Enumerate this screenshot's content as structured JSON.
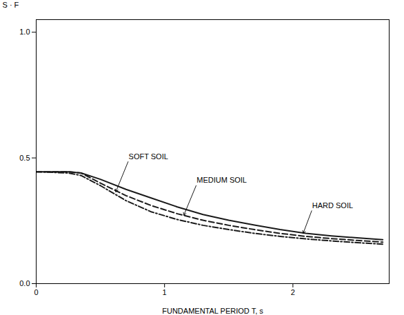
{
  "chart_data": {
    "type": "line",
    "xlabel": "FUNDAMENTAL PERIOD T, s",
    "ylabel": "S · F",
    "x": [
      0.0,
      0.25,
      0.35,
      0.5,
      0.7,
      0.9,
      1.1,
      1.3,
      1.5,
      1.7,
      1.9,
      2.1,
      2.3,
      2.5,
      2.7
    ],
    "xlim": [
      0,
      2.75
    ],
    "ylim": [
      0,
      1.05
    ],
    "xticks": [
      0,
      1,
      2
    ],
    "yticks": [
      {
        "value": 0,
        "label": "0.0"
      },
      0.5,
      {
        "value": 1.0,
        "label": "1.0"
      }
    ],
    "grid": false,
    "series": [
      {
        "color": "#1a1a1a",
        "line_style": "solid",
        "values": [
          0.445,
          0.445,
          0.44,
          0.415,
          0.375,
          0.34,
          0.305,
          0.275,
          0.252,
          0.233,
          0.215,
          0.2,
          0.19,
          0.182,
          0.175
        ]
      },
      {
        "color": "#1a1a1a",
        "line_style": "dashed",
        "values": [
          0.445,
          0.445,
          0.44,
          0.4,
          0.35,
          0.31,
          0.278,
          0.252,
          0.232,
          0.215,
          0.2,
          0.188,
          0.179,
          0.172,
          0.165
        ]
      },
      {
        "color": "#1a1a1a",
        "line_style": "dashdot",
        "values": [
          0.445,
          0.44,
          0.43,
          0.39,
          0.33,
          0.285,
          0.255,
          0.232,
          0.215,
          0.2,
          0.188,
          0.178,
          0.17,
          0.163,
          0.157
        ]
      }
    ],
    "annotations": [
      {
        "text": "SOFT SOIL",
        "xy": [
          0.62,
          0.365
        ],
        "xytext": [
          0.72,
          0.49
        ]
      },
      {
        "text": "MEDIUM SOIL",
        "xy": [
          1.15,
          0.272
        ],
        "xytext": [
          1.25,
          0.395
        ]
      },
      {
        "text": "HARD SOIL",
        "xy": [
          2.08,
          0.2
        ],
        "xytext": [
          2.15,
          0.295
        ]
      }
    ]
  }
}
